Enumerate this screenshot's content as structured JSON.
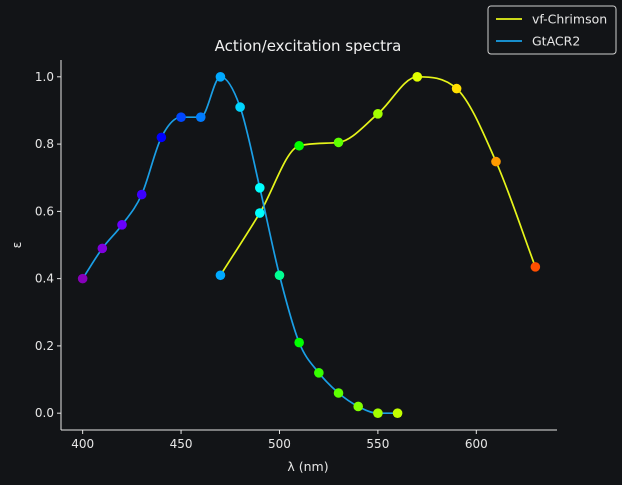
{
  "chart_data": {
    "type": "line",
    "title": "Action/excitation spectra",
    "xlabel": "λ (nm)",
    "ylabel": "ε",
    "xlim": [
      389,
      641
    ],
    "ylim": [
      -0.05,
      1.05
    ],
    "x_ticks": [
      400,
      450,
      500,
      550,
      600
    ],
    "y_ticks": [
      0.0,
      0.2,
      0.4,
      0.6,
      0.8,
      1.0
    ],
    "y_tick_labels": [
      "0.0",
      "0.2",
      "0.4",
      "0.6",
      "0.8",
      "1.0"
    ],
    "grid": false,
    "legend_position": "top-right",
    "background_color": "#121417",
    "axis_color": "#e6e6e6",
    "series": [
      {
        "name": "vf-Chrimson",
        "color": "#e6f51a",
        "x": [
          470,
          490,
          510,
          530,
          550,
          570,
          590,
          610,
          630
        ],
        "y": [
          0.41,
          0.595,
          0.795,
          0.805,
          0.89,
          1.0,
          0.965,
          0.748,
          0.435
        ]
      },
      {
        "name": "GtACR2",
        "color": "#1a9fe6",
        "x": [
          400,
          410,
          420,
          430,
          440,
          450,
          460,
          470,
          480,
          490,
          500,
          510,
          520,
          530,
          540,
          550,
          560
        ],
        "y": [
          0.4,
          0.49,
          0.56,
          0.65,
          0.82,
          0.88,
          0.88,
          1.0,
          0.91,
          0.67,
          0.41,
          0.21,
          0.12,
          0.06,
          0.02,
          0.0,
          0.0
        ]
      }
    ]
  }
}
